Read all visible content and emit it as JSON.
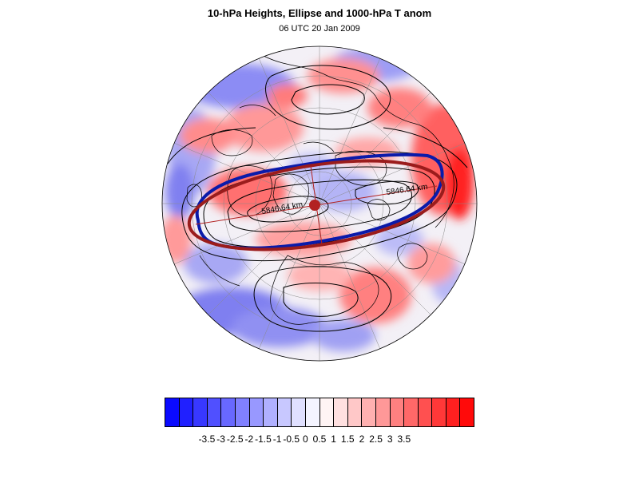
{
  "title": "10-hPa Heights, Ellipse and 1000-hPa T anom",
  "subtitle": "06 UTC 20 Jan 2009",
  "map": {
    "projection": "north-polar-stereographic",
    "contour_labels": [
      "5846.64 km",
      "5846.64 km"
    ],
    "ellipse_color": "#9b1c1c",
    "center_marker_color": "#b22222",
    "vortex_edge_color": "#0a1aaa",
    "warm_anomaly_color": "#ff0000",
    "cold_anomaly_color": "#0000ff",
    "coastline_color": "#000000"
  },
  "colorbar": {
    "colors": [
      "#0a0aff",
      "#2020ff",
      "#3838ff",
      "#5050ff",
      "#6868ff",
      "#8080ff",
      "#9898ff",
      "#b0b0ff",
      "#c8c8ff",
      "#e0e0ff",
      "#f4f4ff",
      "#fff4f4",
      "#ffe0e0",
      "#ffc8c8",
      "#ffb0b0",
      "#ff9898",
      "#ff8080",
      "#ff6868",
      "#ff5050",
      "#ff3838",
      "#ff2020",
      "#ff0a0a"
    ],
    "labels": [
      "-3.5",
      "-3",
      "-2.5",
      "-2",
      "-1.5",
      "-1",
      "-0.5",
      "0",
      "0.5",
      "1",
      "1.5",
      "2",
      "2.5",
      "3",
      "3.5"
    ]
  }
}
